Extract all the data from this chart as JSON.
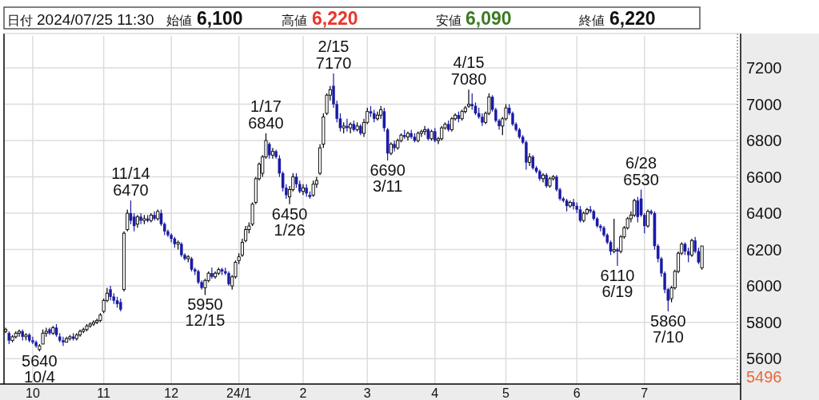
{
  "chart_data": {
    "type": "candlestick",
    "categories": [
      null,
      null,
      null,
      null,
      null,
      null,
      null,
      null,
      "10",
      null,
      null,
      null,
      null,
      null,
      null,
      null,
      null,
      null,
      null,
      null,
      null,
      null,
      null,
      null,
      null,
      null,
      null,
      null,
      null,
      "11",
      null,
      null,
      null,
      null,
      null,
      null,
      null,
      null,
      null,
      null,
      null,
      null,
      null,
      null,
      null,
      null,
      null,
      null,
      null,
      "12",
      null,
      null,
      null,
      null,
      null,
      null,
      null,
      null,
      null,
      null,
      null,
      null,
      null,
      null,
      null,
      null,
      null,
      null,
      null,
      "24/1",
      null,
      null,
      null,
      null,
      null,
      null,
      null,
      null,
      null,
      null,
      null,
      null,
      null,
      null,
      null,
      null,
      null,
      null,
      "2",
      null,
      null,
      null,
      null,
      null,
      null,
      null,
      null,
      null,
      null,
      null,
      null,
      null,
      null,
      null,
      null,
      null,
      null,
      "3",
      null,
      null,
      null,
      null,
      null,
      null,
      null,
      null,
      null,
      null,
      null,
      null,
      null,
      null,
      null,
      null,
      null,
      null,
      null,
      "4",
      null,
      null,
      null,
      null,
      null,
      null,
      null,
      null,
      null,
      null,
      null,
      null,
      null,
      null,
      null,
      null,
      null,
      null,
      null,
      null,
      "5",
      null,
      null,
      null,
      null,
      null,
      null,
      null,
      null,
      null,
      null,
      null,
      null,
      null,
      null,
      null,
      null,
      null,
      null,
      null,
      null,
      "6",
      null,
      null,
      null,
      null,
      null,
      null,
      null,
      null,
      null,
      null,
      null,
      null,
      null,
      null,
      null,
      null,
      null,
      null,
      null,
      "7",
      null,
      null,
      null,
      null,
      null,
      null,
      null,
      null,
      null,
      null,
      null,
      null,
      null,
      null,
      null,
      null,
      null
    ],
    "ohlc": [
      [
        5750,
        5770,
        5740,
        5760
      ],
      [
        5740,
        5750,
        5680,
        5700
      ],
      [
        5700,
        5730,
        5690,
        5720
      ],
      [
        5720,
        5750,
        5710,
        5740
      ],
      [
        5740,
        5760,
        5720,
        5750
      ],
      [
        5750,
        5760,
        5700,
        5720
      ],
      [
        5720,
        5740,
        5700,
        5730
      ],
      [
        5730,
        5740,
        5690,
        5700
      ],
      [
        5700,
        5720,
        5680,
        5690
      ],
      [
        5690,
        5700,
        5660,
        5670
      ],
      [
        5650,
        5680,
        5640,
        5670
      ],
      [
        5680,
        5760,
        5680,
        5740
      ],
      [
        5740,
        5770,
        5720,
        5750
      ],
      [
        5760,
        5770,
        5730,
        5740
      ],
      [
        5740,
        5780,
        5730,
        5770
      ],
      [
        5770,
        5790,
        5720,
        5730
      ],
      [
        5720,
        5740,
        5690,
        5700
      ],
      [
        5700,
        5720,
        5670,
        5690
      ],
      [
        5690,
        5720,
        5690,
        5710
      ],
      [
        5710,
        5730,
        5700,
        5720
      ],
      [
        5720,
        5740,
        5700,
        5710
      ],
      [
        5710,
        5740,
        5700,
        5730
      ],
      [
        5730,
        5760,
        5720,
        5750
      ],
      [
        5750,
        5770,
        5740,
        5760
      ],
      [
        5760,
        5790,
        5750,
        5780
      ],
      [
        5780,
        5800,
        5770,
        5790
      ],
      [
        5790,
        5810,
        5780,
        5800
      ],
      [
        5800,
        5820,
        5790,
        5810
      ],
      [
        5810,
        5850,
        5800,
        5840
      ],
      [
        5860,
        5930,
        5850,
        5920
      ],
      [
        5920,
        5990,
        5910,
        5960
      ],
      [
        5980,
        6000,
        5920,
        5940
      ],
      [
        5940,
        5960,
        5900,
        5920
      ],
      [
        5920,
        5940,
        5880,
        5900
      ],
      [
        5910,
        5930,
        5860,
        5870
      ],
      [
        5980,
        6300,
        5970,
        6290
      ],
      [
        6310,
        6420,
        6300,
        6400
      ],
      [
        6400,
        6470,
        6340,
        6360
      ],
      [
        6380,
        6400,
        6300,
        6330
      ],
      [
        6340,
        6390,
        6320,
        6380
      ],
      [
        6380,
        6400,
        6340,
        6360
      ],
      [
        6360,
        6390,
        6340,
        6370
      ],
      [
        6370,
        6390,
        6350,
        6360
      ],
      [
        6360,
        6400,
        6350,
        6390
      ],
      [
        6390,
        6410,
        6360,
        6370
      ],
      [
        6370,
        6420,
        6360,
        6410
      ],
      [
        6400,
        6420,
        6330,
        6340
      ],
      [
        6340,
        6350,
        6280,
        6300
      ],
      [
        6300,
        6310,
        6270,
        6280
      ],
      [
        6280,
        6290,
        6240,
        6260
      ],
      [
        6260,
        6270,
        6210,
        6230
      ],
      [
        6230,
        6250,
        6200,
        6240
      ],
      [
        6230,
        6240,
        6160,
        6170
      ],
      [
        6170,
        6180,
        6140,
        6150
      ],
      [
        6150,
        6170,
        6130,
        6160
      ],
      [
        6150,
        6160,
        6080,
        6090
      ],
      [
        6090,
        6100,
        6060,
        6080
      ],
      [
        6080,
        6090,
        6010,
        6020
      ],
      [
        6020,
        6030,
        5980,
        5990
      ],
      [
        5990,
        6040,
        5950,
        6030
      ],
      [
        6030,
        6080,
        6020,
        6070
      ],
      [
        6070,
        6100,
        6040,
        6050
      ],
      [
        6050,
        6080,
        6040,
        6070
      ],
      [
        6070,
        6100,
        6060,
        6090
      ],
      [
        6090,
        6100,
        6060,
        6080
      ],
      [
        6080,
        6100,
        6060,
        6070
      ],
      [
        6070,
        6080,
        6000,
        6010
      ],
      [
        6000,
        6060,
        5980,
        6050
      ],
      [
        6050,
        6140,
        6040,
        6130
      ],
      [
        6140,
        6180,
        6120,
        6160
      ],
      [
        6170,
        6260,
        6160,
        6240
      ],
      [
        6250,
        6330,
        6240,
        6310
      ],
      [
        6310,
        6350,
        6290,
        6330
      ],
      [
        6340,
        6460,
        6330,
        6450
      ],
      [
        6460,
        6600,
        6450,
        6590
      ],
      [
        6590,
        6680,
        6580,
        6670
      ],
      [
        6620,
        6720,
        6600,
        6710
      ],
      [
        6710,
        6840,
        6700,
        6800
      ],
      [
        6780,
        6790,
        6700,
        6720
      ],
      [
        6720,
        6760,
        6700,
        6740
      ],
      [
        6740,
        6750,
        6700,
        6710
      ],
      [
        6700,
        6720,
        6600,
        6620
      ],
      [
        6620,
        6630,
        6520,
        6540
      ],
      [
        6540,
        6560,
        6480,
        6500
      ],
      [
        6490,
        6550,
        6450,
        6530
      ],
      [
        6530,
        6620,
        6520,
        6600
      ],
      [
        6600,
        6620,
        6540,
        6560
      ],
      [
        6560,
        6580,
        6510,
        6520
      ],
      [
        6520,
        6560,
        6500,
        6540
      ],
      [
        6540,
        6560,
        6490,
        6510
      ],
      [
        6500,
        6520,
        6480,
        6490
      ],
      [
        6500,
        6580,
        6490,
        6560
      ],
      [
        6560,
        6600,
        6540,
        6580
      ],
      [
        6620,
        6780,
        6610,
        6760
      ],
      [
        6780,
        6950,
        6760,
        6930
      ],
      [
        6950,
        7060,
        6940,
        7050
      ],
      [
        7050,
        7100,
        7020,
        7080
      ],
      [
        7100,
        7170,
        6980,
        7000
      ],
      [
        7000,
        7020,
        6900,
        6920
      ],
      [
        6920,
        6950,
        6850,
        6870
      ],
      [
        6870,
        6900,
        6840,
        6880
      ],
      [
        6880,
        6920,
        6850,
        6870
      ],
      [
        6870,
        6900,
        6840,
        6890
      ],
      [
        6890,
        6910,
        6850,
        6860
      ],
      [
        6860,
        6900,
        6850,
        6880
      ],
      [
        6880,
        6890,
        6830,
        6840
      ],
      [
        6840,
        6920,
        6820,
        6900
      ],
      [
        6900,
        6980,
        6890,
        6960
      ],
      [
        6960,
        6990,
        6930,
        6950
      ],
      [
        6950,
        6970,
        6900,
        6920
      ],
      [
        6920,
        6960,
        6910,
        6940
      ],
      [
        6940,
        6990,
        6920,
        6970
      ],
      [
        6960,
        6980,
        6850,
        6870
      ],
      [
        6860,
        6870,
        6690,
        6730
      ],
      [
        6730,
        6790,
        6720,
        6780
      ],
      [
        6780,
        6800,
        6740,
        6760
      ],
      [
        6760,
        6810,
        6750,
        6800
      ],
      [
        6800,
        6840,
        6790,
        6830
      ],
      [
        6830,
        6860,
        6810,
        6820
      ],
      [
        6820,
        6850,
        6800,
        6840
      ],
      [
        6840,
        6860,
        6810,
        6820
      ],
      [
        6820,
        6840,
        6790,
        6800
      ],
      [
        6800,
        6850,
        6790,
        6840
      ],
      [
        6840,
        6860,
        6820,
        6850
      ],
      [
        6850,
        6880,
        6830,
        6860
      ],
      [
        6860,
        6870,
        6800,
        6810
      ],
      [
        6810,
        6860,
        6800,
        6850
      ],
      [
        6850,
        6870,
        6790,
        6800
      ],
      [
        6800,
        6820,
        6780,
        6810
      ],
      [
        6810,
        6880,
        6800,
        6870
      ],
      [
        6870,
        6900,
        6860,
        6890
      ],
      [
        6890,
        6910,
        6850,
        6860
      ],
      [
        6860,
        6930,
        6850,
        6920
      ],
      [
        6920,
        6950,
        6910,
        6940
      ],
      [
        6940,
        6960,
        6900,
        6920
      ],
      [
        6920,
        6970,
        6910,
        6960
      ],
      [
        6960,
        6990,
        6950,
        6980
      ],
      [
        6990,
        7080,
        6980,
        7000
      ],
      [
        7000,
        7060,
        6970,
        6990
      ],
      [
        6990,
        7010,
        6940,
        6950
      ],
      [
        6950,
        6980,
        6920,
        6930
      ],
      [
        6930,
        6950,
        6880,
        6900
      ],
      [
        6900,
        6960,
        6890,
        6950
      ],
      [
        6950,
        7060,
        6940,
        7040
      ],
      [
        7040,
        7050,
        6960,
        6970
      ],
      [
        6970,
        6980,
        6900,
        6910
      ],
      [
        6910,
        6920,
        6860,
        6880
      ],
      [
        6880,
        6930,
        6830,
        6920
      ],
      [
        6920,
        7000,
        6910,
        6980
      ],
      [
        6980,
        7000,
        6940,
        6950
      ],
      [
        6950,
        6960,
        6880,
        6890
      ],
      [
        6890,
        6900,
        6850,
        6860
      ],
      [
        6860,
        6870,
        6810,
        6820
      ],
      [
        6820,
        6830,
        6780,
        6790
      ],
      [
        6790,
        6800,
        6640,
        6680
      ],
      [
        6680,
        6730,
        6660,
        6710
      ],
      [
        6710,
        6720,
        6640,
        6650
      ],
      [
        6650,
        6660,
        6620,
        6630
      ],
      [
        6630,
        6640,
        6580,
        6590
      ],
      [
        6590,
        6620,
        6570,
        6610
      ],
      [
        6610,
        6620,
        6540,
        6550
      ],
      [
        6550,
        6600,
        6540,
        6590
      ],
      [
        6590,
        6610,
        6580,
        6600
      ],
      [
        6600,
        6610,
        6520,
        6530
      ],
      [
        6530,
        6540,
        6470,
        6480
      ],
      [
        6480,
        6490,
        6460,
        6470
      ],
      [
        6470,
        6480,
        6410,
        6440
      ],
      [
        6440,
        6470,
        6430,
        6460
      ],
      [
        6460,
        6480,
        6420,
        6440
      ],
      [
        6440,
        6460,
        6400,
        6420
      ],
      [
        6420,
        6440,
        6350,
        6360
      ],
      [
        6360,
        6410,
        6350,
        6400
      ],
      [
        6400,
        6430,
        6390,
        6420
      ],
      [
        6420,
        6440,
        6400,
        6410
      ],
      [
        6410,
        6420,
        6360,
        6370
      ],
      [
        6370,
        6380,
        6320,
        6330
      ],
      [
        6330,
        6340,
        6300,
        6320
      ],
      [
        6320,
        6330,
        6270,
        6280
      ],
      [
        6280,
        6290,
        6230,
        6240
      ],
      [
        6240,
        6250,
        6170,
        6190
      ],
      [
        6190,
        6370,
        6180,
        6200
      ],
      [
        6200,
        6210,
        6110,
        6190
      ],
      [
        6190,
        6280,
        6180,
        6270
      ],
      [
        6270,
        6330,
        6260,
        6320
      ],
      [
        6320,
        6380,
        6310,
        6370
      ],
      [
        6370,
        6410,
        6350,
        6390
      ],
      [
        6390,
        6480,
        6380,
        6470
      ],
      [
        6470,
        6490,
        6350,
        6380
      ],
      [
        6480,
        6530,
        6380,
        6390
      ],
      [
        6390,
        6400,
        6290,
        6330
      ],
      [
        6330,
        6420,
        6320,
        6410
      ],
      [
        6410,
        6420,
        6390,
        6400
      ],
      [
        6400,
        6410,
        6200,
        6220
      ],
      [
        6220,
        6230,
        6130,
        6150
      ],
      [
        6150,
        6160,
        6050,
        6070
      ],
      [
        6070,
        6080,
        5960,
        5980
      ],
      [
        5980,
        5990,
        5860,
        5920
      ],
      [
        5930,
        6000,
        5910,
        5990
      ],
      [
        5990,
        6090,
        5980,
        6080
      ],
      [
        6080,
        6190,
        6070,
        6180
      ],
      [
        6180,
        6240,
        6170,
        6230
      ],
      [
        6230,
        6240,
        6170,
        6190
      ],
      [
        6190,
        6210,
        6130,
        6170
      ],
      [
        6170,
        6260,
        6160,
        6250
      ],
      [
        6250,
        6270,
        6180,
        6190
      ],
      [
        6190,
        6210,
        6120,
        6130
      ],
      [
        6100,
        6220,
        6090,
        6220
      ]
    ],
    "ylim": [
      5460,
      7376
    ],
    "yticks": [
      5600,
      5800,
      6000,
      6200,
      6400,
      6600,
      6800,
      7000,
      7200
    ],
    "grid": true,
    "annotations": [
      "日付",
      "2024/07/25 11:30",
      "始値",
      "6,100",
      "高値",
      "6,220",
      "安値",
      "6,090",
      "終値",
      "6,220",
      {
        "text": "5640\n10/4",
        "y": 5640
      },
      {
        "text": "11/14\n6470",
        "y": 6470
      },
      {
        "text": "5950\n12/15",
        "y": 5950
      },
      {
        "text": "1/17\n6840",
        "y": 6840
      },
      {
        "text": "6450\n1/26",
        "y": 6450
      },
      {
        "text": "2/15\n7170",
        "y": 7170
      },
      {
        "text": "6690\n3/11",
        "y": 6690
      },
      {
        "text": "4/15\n7080",
        "y": 7080
      },
      {
        "text": "6110\n6/19",
        "y": 6110
      },
      {
        "text": "6/28\n6530",
        "y": 6530
      },
      {
        "text": "5860\n7/10",
        "y": 5860
      },
      "5496"
    ]
  }
}
